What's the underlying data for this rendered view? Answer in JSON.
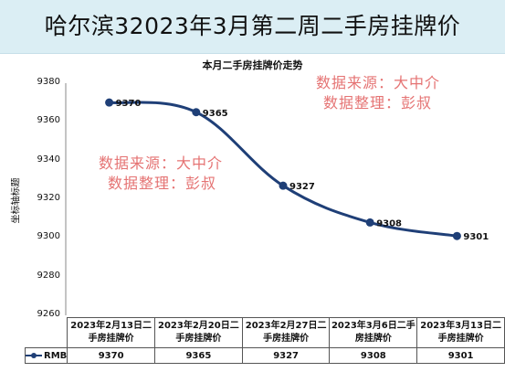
{
  "header": {
    "title": "哈尔滨32023年3月第二周二手房挂牌价"
  },
  "watermarks": [
    {
      "line1": "数据来源：大中介",
      "line2": "数据整理：彭叔"
    },
    {
      "line1": "数据来源：大中介",
      "line2": "数据整理：彭叔"
    }
  ],
  "colors": {
    "line": "#1f3f77",
    "header_bg": "#dbeef4",
    "watermark": "#e57373"
  },
  "chart_data": {
    "type": "line",
    "title": "本月二手房挂牌价走势",
    "ylabel": "坐标轴标题",
    "xlabel": "",
    "ylim": [
      9260,
      9380
    ],
    "yticks": [
      9380,
      9360,
      9340,
      9320,
      9300,
      9280,
      9260
    ],
    "categories": [
      "2023年2月13日二手房挂牌价",
      "2023年2月20日二手房挂牌价",
      "2023年2月27日二手房挂牌价",
      "2023年3月6日二手房挂牌价",
      "2023年3月13日二手房挂牌价"
    ],
    "category_lines": [
      [
        "2023年2月13日二",
        "手房挂牌价"
      ],
      [
        "2023年2月20日二",
        "手房挂牌价"
      ],
      [
        "2023年2月27日二",
        "手房挂牌价"
      ],
      [
        "2023年3月6日二手",
        "房挂牌价"
      ],
      [
        "2023年3月13日二",
        "手房挂牌价"
      ]
    ],
    "series": [
      {
        "name": "RMB",
        "values": [
          9370,
          9365,
          9327,
          9308,
          9301
        ]
      }
    ],
    "data_labels": [
      "9370",
      "9365",
      "9327",
      "9308",
      "9301"
    ],
    "grid": false,
    "legend": "data table"
  }
}
